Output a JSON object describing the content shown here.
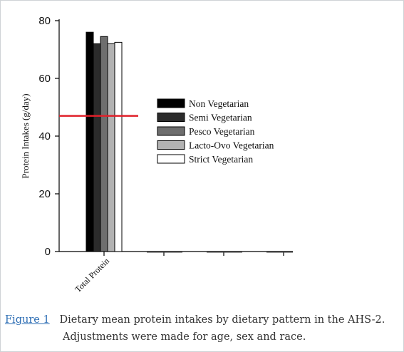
{
  "chart_data": {
    "type": "bar",
    "ylabel": "Protein Intakes (g/day)",
    "ylim": [
      0,
      80
    ],
    "yticks": [
      0,
      20,
      40,
      60,
      80
    ],
    "categories": [
      "Total Protein"
    ],
    "series": [
      {
        "name": "Non Vegetarian",
        "values": [
          76
        ],
        "color": "#000000"
      },
      {
        "name": "Semi Vegetarian",
        "values": [
          72
        ],
        "color": "#2b2b2b"
      },
      {
        "name": "Pesco Vegetarian",
        "values": [
          74.5
        ],
        "color": "#6e6e6e"
      },
      {
        "name": "Lacto-Ovo Vegetarian",
        "values": [
          72
        ],
        "color": "#b2b2b2"
      },
      {
        "name": "Strict Vegetarian",
        "values": [
          72.5
        ],
        "color": "#ffffff"
      }
    ],
    "reference_line": {
      "value": 47,
      "color": "#e0202a"
    },
    "legend_position": "center-right",
    "grid": false
  },
  "caption": {
    "figure_link": "Figure 1",
    "text_line1": "Dietary mean protein intakes by dietary pattern in the AHS-2.",
    "text_line2": "Adjustments were made for age, sex and race."
  },
  "colors": {
    "link": "#2f6fb5",
    "reference_line": "#e0202a"
  }
}
